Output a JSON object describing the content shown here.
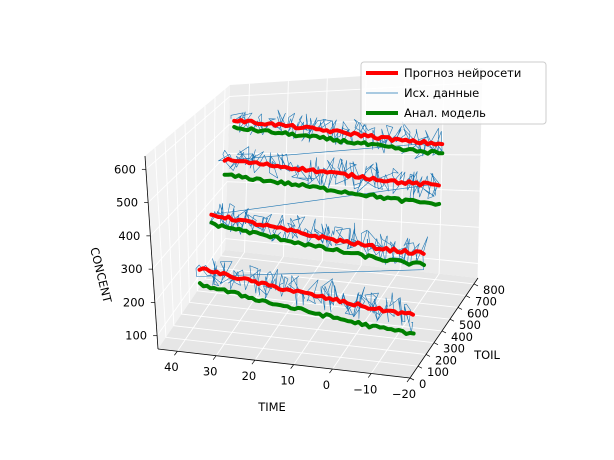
{
  "chart_data": {
    "type": "line",
    "projection": "3d",
    "title": "",
    "axes": {
      "x": {
        "label": "TIME",
        "range": [
          -20,
          45
        ],
        "ticks": [
          40,
          30,
          20,
          10,
          0,
          -10,
          -20
        ],
        "tick_labels": [
          "40",
          "30",
          "20",
          "10",
          "0",
          "−10",
          "−20"
        ]
      },
      "y": {
        "label": "TOIL",
        "range": [
          0,
          850
        ],
        "ticks": [
          0,
          100,
          200,
          300,
          400,
          500,
          600,
          700,
          800
        ],
        "tick_labels": [
          "0",
          "100",
          "200",
          "300",
          "400",
          "500",
          "600",
          "700",
          "800"
        ]
      },
      "z": {
        "label": "CONCENT",
        "range": [
          60,
          640
        ],
        "ticks": [
          100,
          200,
          300,
          400,
          500,
          600
        ],
        "tick_labels": [
          "100",
          "200",
          "300",
          "400",
          "500",
          "600"
        ]
      }
    },
    "grid": true,
    "legend": {
      "placement": "upper right",
      "entries": [
        "Прогноз нейросети",
        "Исх. данные",
        "Анал. модель"
      ]
    },
    "series": [
      {
        "name": "Прогноз нейросети",
        "color": "#ff0000",
        "style": "thick",
        "segments": [
          [
            [
              40,
              700,
              560
            ],
            [
              30,
              650,
              560
            ],
            [
              20,
              600,
              560
            ],
            [
              10,
              550,
              560
            ],
            [
              0,
              500,
              560
            ],
            [
              -10,
              450,
              560
            ],
            [
              -20,
              420,
              560
            ]
          ],
          [
            [
              40,
              600,
              460
            ],
            [
              30,
              560,
              460
            ],
            [
              20,
              520,
              460
            ],
            [
              10,
              480,
              460
            ],
            [
              0,
              440,
              460
            ],
            [
              -10,
              400,
              460
            ],
            [
              -20,
              380,
              460
            ]
          ],
          [
            [
              40,
              450,
              330
            ],
            [
              30,
              400,
              330
            ],
            [
              20,
              350,
              330
            ],
            [
              10,
              300,
              330
            ],
            [
              0,
              260,
              330
            ],
            [
              -10,
              220,
              330
            ],
            [
              -20,
              200,
              330
            ]
          ],
          [
            [
              40,
              300,
              210
            ],
            [
              30,
              250,
              210
            ],
            [
              20,
              200,
              210
            ],
            [
              10,
              160,
              210
            ],
            [
              0,
              120,
              210
            ],
            [
              -10,
              80,
              210
            ],
            [
              -20,
              60,
              210
            ]
          ]
        ]
      },
      {
        "name": "Исх. данные",
        "color": "#1f77b4",
        "style": "thin",
        "base_levels": [
          560,
          460,
          330,
          210
        ],
        "note_levels": "noisy measurements around each concentration level"
      },
      {
        "name": "Анал. модель",
        "color": "#008000",
        "style": "thick",
        "segments": [
          [
            [
              40,
              700,
              535
            ],
            [
              30,
              650,
              535
            ],
            [
              20,
              600,
              535
            ],
            [
              10,
              550,
              535
            ],
            [
              0,
              500,
              535
            ],
            [
              -10,
              450,
              535
            ],
            [
              -20,
              420,
              535
            ]
          ],
          [
            [
              40,
              600,
              410
            ],
            [
              30,
              560,
              410
            ],
            [
              20,
              520,
              410
            ],
            [
              10,
              480,
              410
            ],
            [
              0,
              440,
              410
            ],
            [
              -10,
              400,
              410
            ],
            [
              -20,
              380,
              410
            ]
          ],
          [
            [
              40,
              450,
              300
            ],
            [
              30,
              400,
              300
            ],
            [
              20,
              350,
              300
            ],
            [
              10,
              300,
              300
            ],
            [
              0,
              260,
              300
            ],
            [
              -10,
              220,
              300
            ],
            [
              -20,
              200,
              300
            ]
          ],
          [
            [
              40,
              300,
              160
            ],
            [
              30,
              250,
              160
            ],
            [
              20,
              200,
              160
            ],
            [
              10,
              160,
              160
            ],
            [
              0,
              120,
              160
            ],
            [
              -10,
              80,
              160
            ],
            [
              -20,
              60,
              160
            ]
          ]
        ]
      }
    ]
  },
  "colors": {
    "pane_back": "#ebebeb",
    "pane_side": "#f2f2f2",
    "pane_floor": "#e6e6e6",
    "grid": "#ffffff",
    "forecast": "#ff0000",
    "raw": "#1f77b4",
    "model": "#008000"
  }
}
